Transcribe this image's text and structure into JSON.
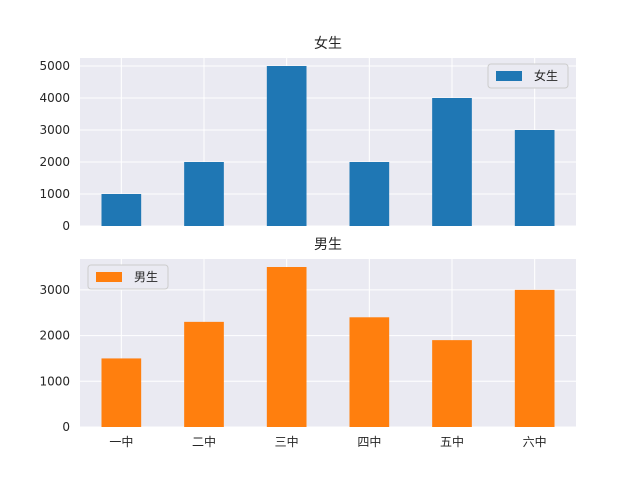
{
  "chart_data": [
    {
      "type": "bar",
      "title": "女生",
      "categories": [
        "一中",
        "二中",
        "三中",
        "四中",
        "五中",
        "六中"
      ],
      "series": [
        {
          "name": "女生",
          "values": [
            1000,
            2000,
            5000,
            2000,
            4000,
            3000
          ],
          "color": "#1f77b4"
        }
      ],
      "yticks": [
        0,
        1000,
        2000,
        3000,
        4000,
        5000
      ],
      "ylim": [
        0,
        5250
      ],
      "grid": true,
      "legend_position": "top-right",
      "show_x_tick_labels": false
    },
    {
      "type": "bar",
      "title": "男生",
      "categories": [
        "一中",
        "二中",
        "三中",
        "四中",
        "五中",
        "六中"
      ],
      "series": [
        {
          "name": "男生",
          "values": [
            1500,
            2300,
            3500,
            2400,
            1900,
            3000
          ],
          "color": "#ff7f0e"
        }
      ],
      "yticks": [
        0,
        1000,
        2000,
        3000
      ],
      "ylim": [
        0,
        3675
      ],
      "grid": true,
      "legend_position": "top-left",
      "show_x_tick_labels": true
    }
  ],
  "style": {
    "plot_background": "#eaeaf2",
    "grid_color": "#ffffff",
    "text_color": "#262626"
  }
}
